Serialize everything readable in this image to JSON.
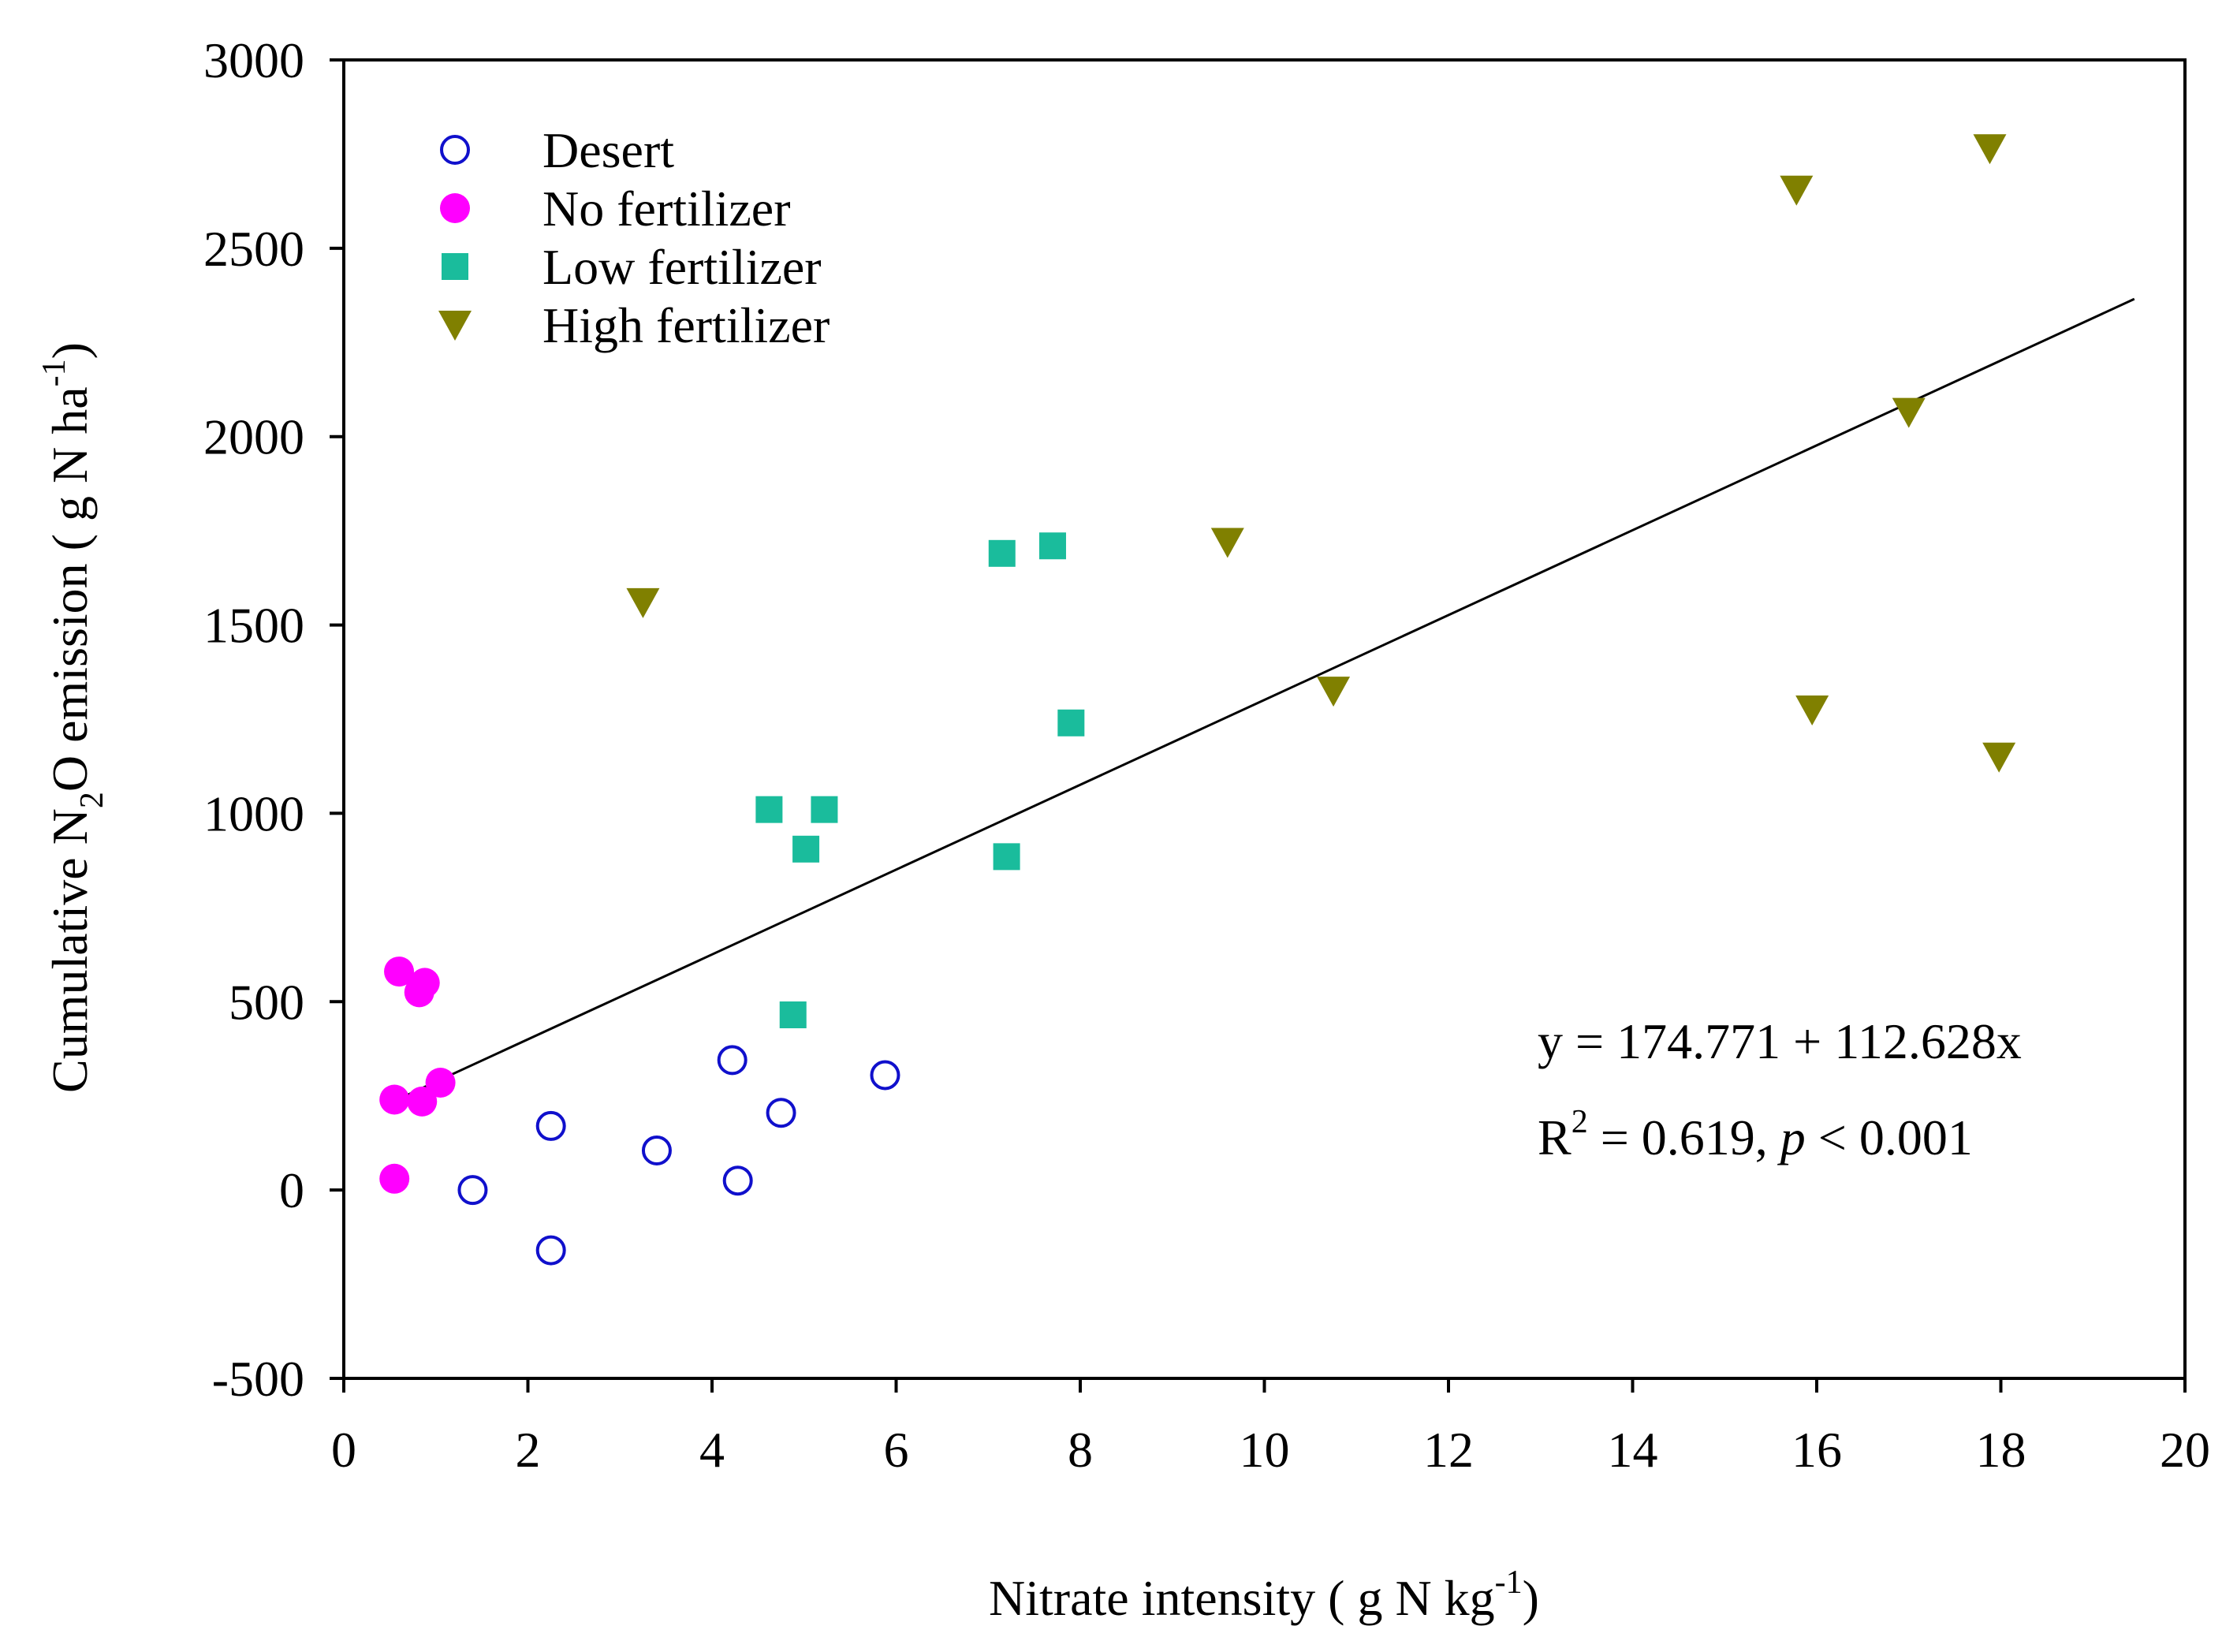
{
  "chart_data": {
    "type": "scatter",
    "title": "",
    "xlabel": "Nitrate intensity  ( g N kg",
    "xlabel_sup": "-1",
    "xlabel_close": ")",
    "ylabel_parts": {
      "prefix": "Cumulative N",
      "sub": "2",
      "middle": "O emission ( g N ha",
      "sup": "-1",
      "suffix": ")"
    },
    "xlim": [
      0,
      20
    ],
    "ylim": [
      -500,
      3000
    ],
    "x_ticks": [
      0,
      2,
      4,
      6,
      8,
      10,
      12,
      14,
      16,
      18,
      20
    ],
    "y_ticks": [
      -500,
      0,
      500,
      1000,
      1500,
      2000,
      2500,
      3000
    ],
    "x_tick_labels": [
      "0",
      "2",
      "4",
      "6",
      "8",
      "10",
      "12",
      "14",
      "16",
      "18",
      "20"
    ],
    "y_tick_labels": [
      "-500",
      "0",
      "500",
      "1000",
      "1500",
      "2000",
      "2500",
      "3000"
    ],
    "legend_position": "top-left",
    "series": [
      {
        "name": "Desert",
        "marker": "circle-open",
        "color": "#1010CC",
        "points": [
          [
            1.4,
            0
          ],
          [
            2.25,
            170
          ],
          [
            2.25,
            -160
          ],
          [
            3.4,
            105
          ],
          [
            4.22,
            345
          ],
          [
            4.28,
            25
          ],
          [
            4.75,
            205
          ],
          [
            5.88,
            305
          ]
        ]
      },
      {
        "name": "No fertilizer",
        "marker": "circle-filled",
        "color": "#FF00FF",
        "points": [
          [
            0.55,
            30
          ],
          [
            0.6,
            580
          ],
          [
            0.82,
            525
          ],
          [
            0.88,
            550
          ],
          [
            0.55,
            240
          ],
          [
            0.85,
            235
          ],
          [
            1.05,
            285
          ]
        ]
      },
      {
        "name": "Low fertilizer",
        "marker": "square-filled",
        "color": "#1ABC9C",
        "points": [
          [
            4.88,
            465
          ],
          [
            5.02,
            905
          ],
          [
            4.62,
            1010
          ],
          [
            5.22,
            1010
          ],
          [
            7.15,
            1690
          ],
          [
            7.7,
            1710
          ],
          [
            7.2,
            885
          ],
          [
            7.9,
            1240
          ]
        ]
      },
      {
        "name": "High fertilizer",
        "marker": "triangle-down-filled",
        "color": "#808000",
        "points": [
          [
            3.25,
            1560
          ],
          [
            9.6,
            1720
          ],
          [
            10.75,
            1325
          ],
          [
            15.78,
            2655
          ],
          [
            15.95,
            1275
          ],
          [
            17.0,
            2065
          ],
          [
            17.88,
            2765
          ],
          [
            17.98,
            1150
          ]
        ]
      }
    ],
    "regression": {
      "intercept": 174.771,
      "slope": 112.628,
      "x_start": 0.6,
      "x_end": 19.45,
      "color": "#000000"
    },
    "annotations": {
      "equation": "y = 174.771 + 112.628x",
      "r2_prefix": "R",
      "r2_sup": "2",
      "r2_value": " = 0.619, ",
      "p_symbol": "p",
      "p_value": " < 0.001"
    }
  }
}
